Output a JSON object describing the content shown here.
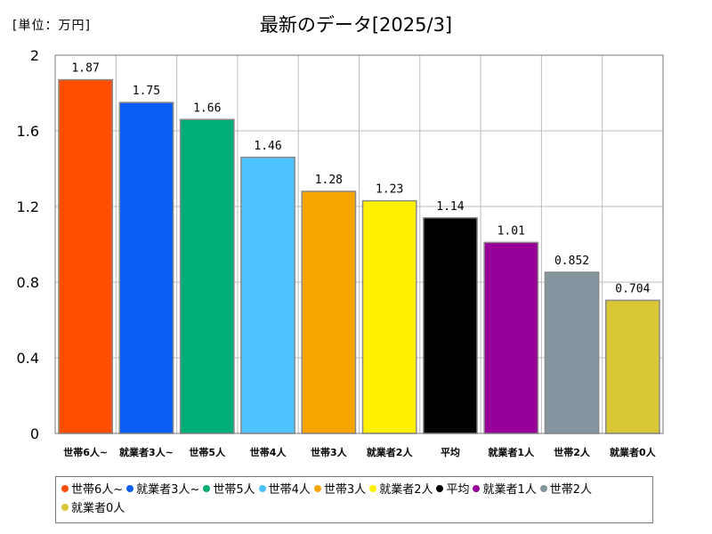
{
  "header": {
    "unit": "[単位：万円]"
  },
  "chart_data": {
    "type": "bar",
    "title": "最新のデータ[2025/3]",
    "xlabel": "",
    "ylabel": "",
    "ylim": [
      0,
      2
    ],
    "yticks": [
      "0",
      "0.4",
      "0.8",
      "1.2",
      "1.6",
      "2"
    ],
    "grid": true,
    "legend_position": "bottom",
    "categories": [
      "世帯6人~",
      "就業者3人~",
      "世帯5人",
      "世帯4人",
      "世帯3人",
      "就業者2人",
      "平均",
      "就業者1人",
      "世帯2人",
      "就業者0人"
    ],
    "values": [
      1.87,
      1.75,
      1.66,
      1.46,
      1.28,
      1.23,
      1.14,
      1.01,
      0.852,
      0.704
    ],
    "value_labels": [
      "1.87",
      "1.75",
      "1.66",
      "1.46",
      "1.28",
      "1.23",
      "1.14",
      "1.01",
      "0.852",
      "0.704"
    ],
    "colors": [
      "#ff4e00",
      "#0b5ef5",
      "#00ae78",
      "#4fc3ff",
      "#f5a400",
      "#fff000",
      "#000000",
      "#970099",
      "#8495a0",
      "#d9c736"
    ]
  }
}
